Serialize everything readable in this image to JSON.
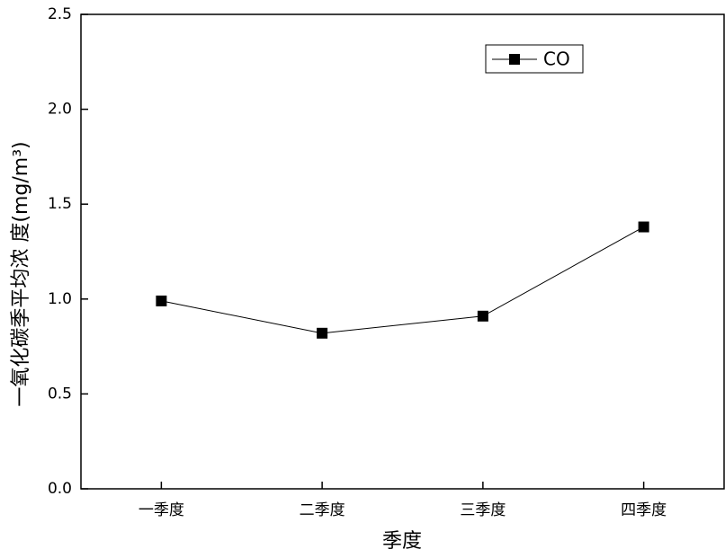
{
  "chart_data": {
    "type": "line",
    "xlabel": "季度",
    "ylabel": "一氧化碳季平均浓 度(mg/m³)",
    "categories": [
      "一季度",
      "二季度",
      "三季度",
      "四季度"
    ],
    "series": [
      {
        "name": "CO",
        "color": "#000000",
        "values": [
          0.99,
          0.82,
          0.91,
          1.38
        ]
      }
    ],
    "ylim": [
      0,
      2.5
    ],
    "yticks": [
      {
        "value": 0,
        "label": "0.0"
      },
      0.5,
      {
        "value": 1,
        "label": "1.0"
      },
      1.5,
      {
        "value": 2,
        "label": "2.0"
      },
      2.5
    ],
    "grid": false,
    "legend": "upper-right"
  }
}
